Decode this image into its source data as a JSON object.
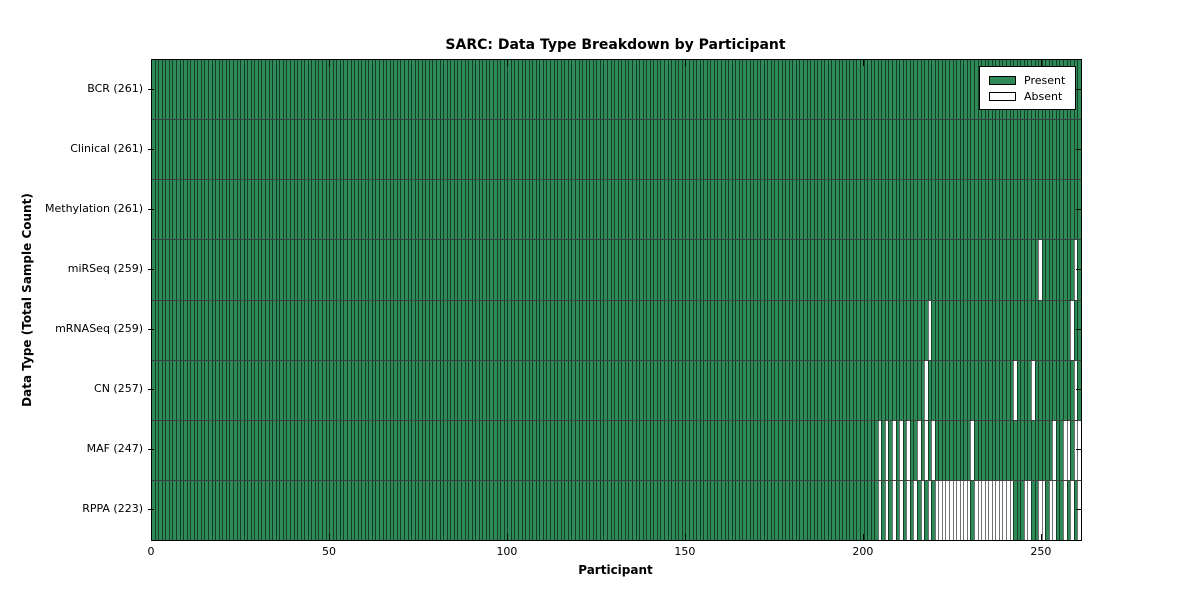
{
  "title": "SARC: Data Type Breakdown by Participant",
  "axes": {
    "x_label": "Participant",
    "y_label": "Data Type (Total Sample Count)",
    "x_tick_values": [
      0,
      50,
      100,
      150,
      200,
      250
    ],
    "x_max": 261
  },
  "legend": {
    "items": [
      {
        "label": "Present",
        "color": "#2e8b57"
      },
      {
        "label": "Absent",
        "color": "#ffffff"
      }
    ]
  },
  "colors": {
    "present": "#2e8b57",
    "absent": "#ffffff",
    "edge": "#000000"
  },
  "chart_data": {
    "type": "heatmap",
    "title": "SARC: Data Type Breakdown by Participant",
    "xlabel": "Participant",
    "ylabel": "Data Type (Total Sample Count)",
    "x_range": [
      0,
      261
    ],
    "n_participants": 261,
    "grid": false,
    "legend_position": "upper right",
    "value_legend": {
      "present": "Present",
      "absent": "Absent"
    },
    "rows": [
      {
        "label": "BCR (261)",
        "data_type": "BCR",
        "total": 261,
        "absent_participants": []
      },
      {
        "label": "Clinical (261)",
        "data_type": "Clinical",
        "total": 261,
        "absent_participants": []
      },
      {
        "label": "Methylation (261)",
        "data_type": "Methylation",
        "total": 261,
        "absent_participants": []
      },
      {
        "label": "miRSeq (259)",
        "data_type": "miRSeq",
        "total": 259,
        "absent_participants": [
          249,
          259
        ]
      },
      {
        "label": "mRNASeq (259)",
        "data_type": "mRNASeq",
        "total": 259,
        "absent_participants": [
          218,
          258
        ]
      },
      {
        "label": "CN (257)",
        "data_type": "CN",
        "total": 257,
        "absent_participants": [
          217,
          242,
          247,
          259
        ]
      },
      {
        "label": "MAF (247)",
        "data_type": "MAF",
        "total": 247,
        "absent_participants": [
          204,
          206,
          208,
          210,
          212,
          215,
          217,
          219,
          230,
          253,
          256,
          257,
          259,
          260
        ]
      },
      {
        "label": "RPPA (223)",
        "data_type": "RPPA",
        "total": 223,
        "absent_participants": [
          204,
          206,
          208,
          210,
          212,
          214,
          216,
          218,
          220,
          221,
          222,
          223,
          224,
          225,
          226,
          227,
          228,
          229,
          231,
          232,
          233,
          234,
          235,
          236,
          237,
          238,
          239,
          240,
          241,
          245,
          246,
          249,
          250,
          252,
          253,
          256,
          258,
          260
        ]
      }
    ]
  }
}
